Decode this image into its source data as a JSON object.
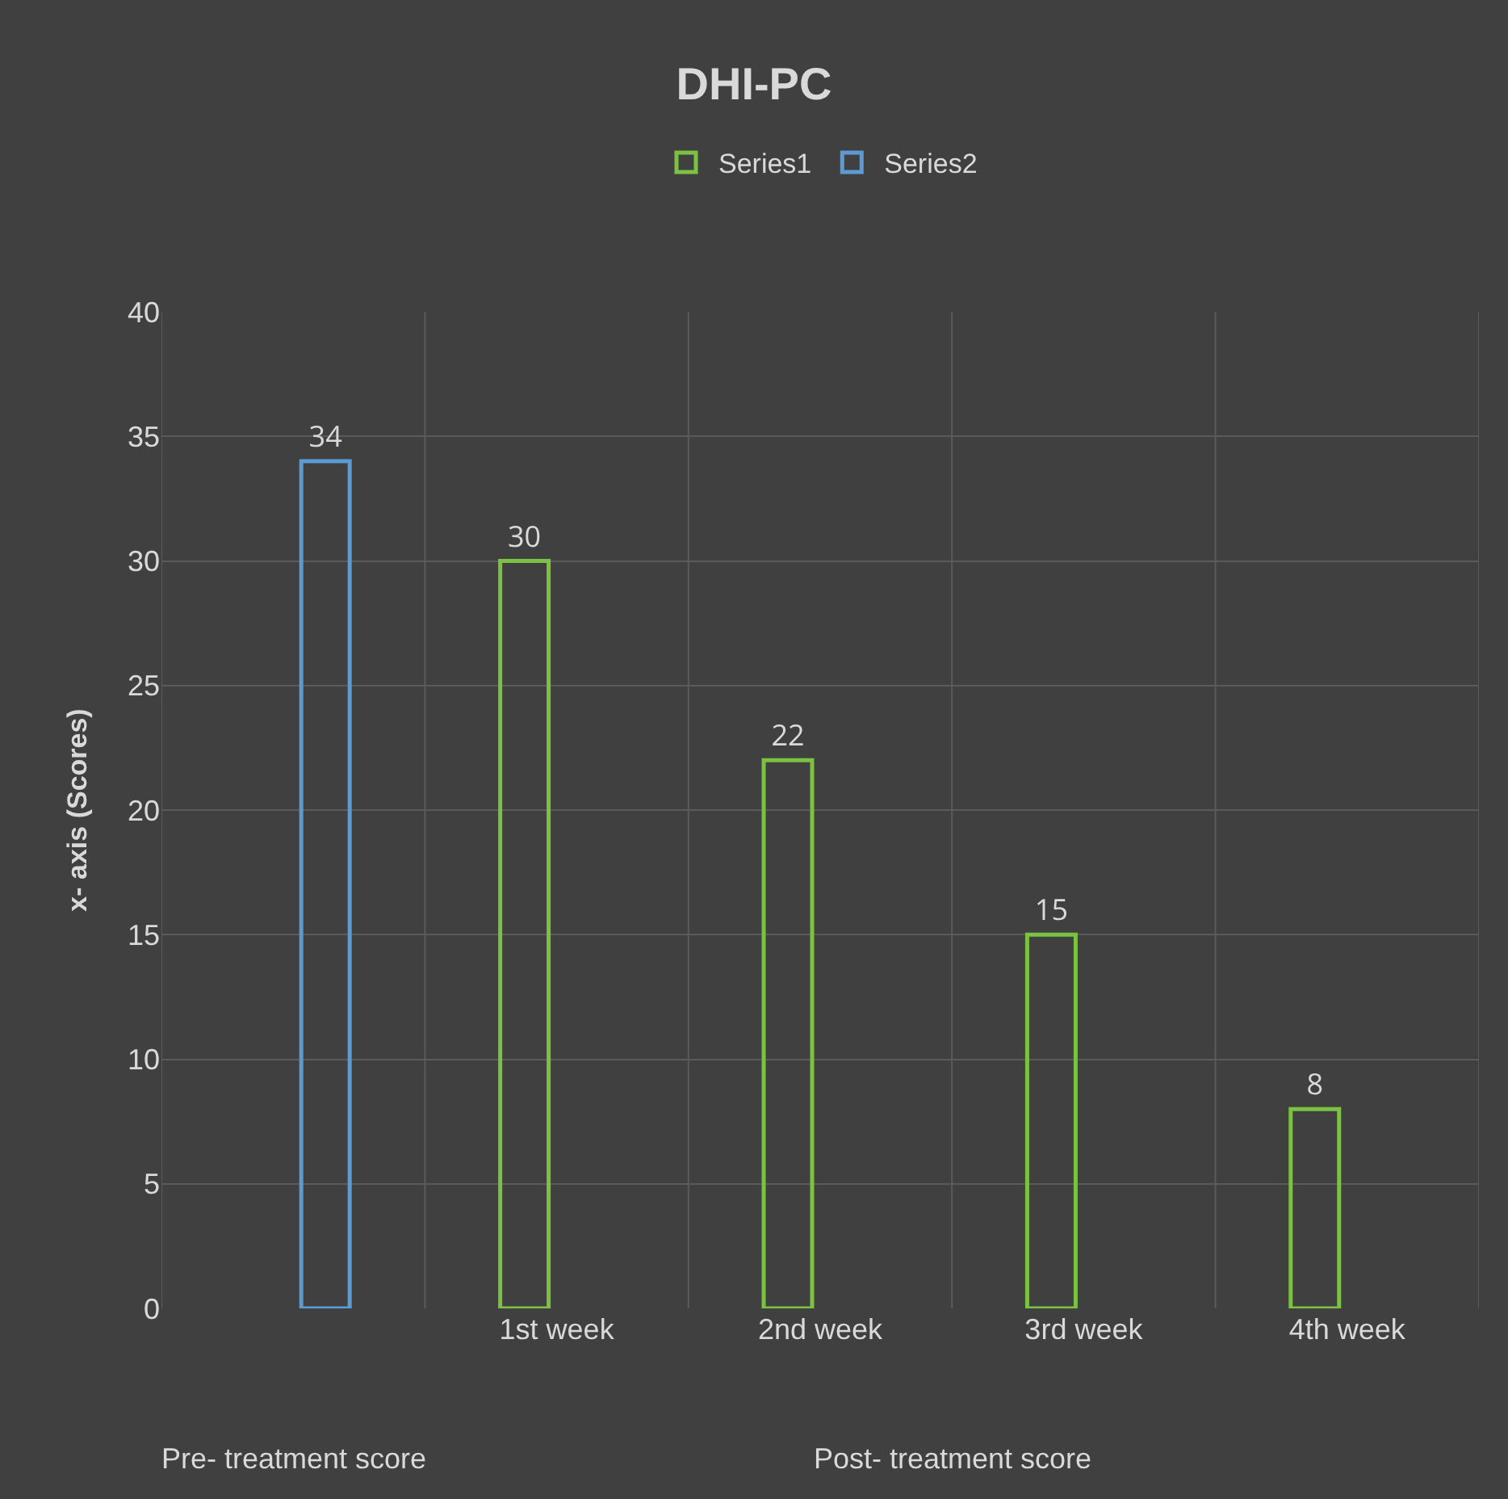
{
  "chart_data": {
    "type": "bar",
    "title": "DHI-PC",
    "ylabel": "x- axis (Scores)",
    "categories": [
      null,
      "1st week",
      "2nd week",
      "3rd week",
      "4th week"
    ],
    "series": [
      {
        "name": "Series1",
        "color": "#7cc242",
        "values": [
          null,
          30,
          22,
          15,
          8
        ]
      },
      {
        "name": "Series2",
        "color": "#5b9bd5",
        "values": [
          34,
          null,
          null,
          null,
          null
        ]
      }
    ],
    "ylim": [
      0,
      40
    ],
    "yticks": [
      0,
      5,
      10,
      15,
      20,
      25,
      30,
      35,
      40
    ],
    "grid": true,
    "legend": "top",
    "data_labels": true,
    "annotations": [
      "Pre- treatment score",
      "Post- treatment score"
    ]
  }
}
